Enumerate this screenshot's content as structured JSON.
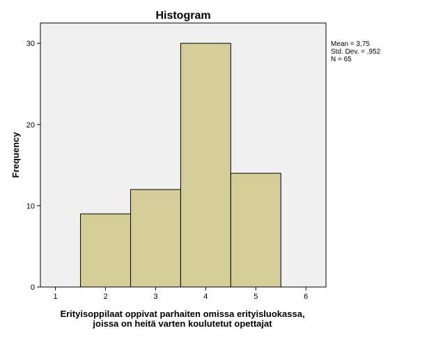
{
  "chart_data": {
    "type": "bar",
    "title": "Histogram",
    "xlabel": [
      "Erityisoppilaat oppivat parhaiten omissa erityisluokassa,",
      "joissa on heitä varten koulutetut opettajat"
    ],
    "ylabel": "Frequency",
    "xlim": [
      0.7,
      6.4
    ],
    "ylim": [
      0,
      32.5
    ],
    "xticks": [
      "1",
      "2",
      "3",
      "4",
      "5",
      "6"
    ],
    "yticks": [
      "0",
      "10",
      "20",
      "30"
    ],
    "categories": [
      "2",
      "3",
      "4",
      "5"
    ],
    "values": [
      9,
      12,
      30,
      14
    ],
    "bar_color": "#d3ce97",
    "plot_background": "#f0f0f0",
    "grid": false,
    "stats": [
      "Mean = 3,75",
      "Std. Dev. = ,952",
      "N = 65"
    ]
  }
}
